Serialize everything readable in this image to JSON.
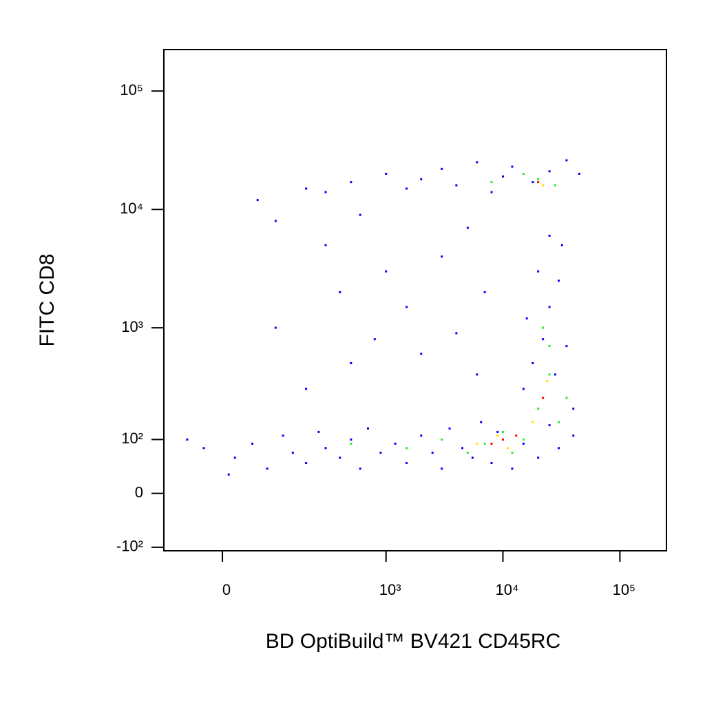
{
  "chart_data": {
    "type": "scatter",
    "x_label": "BD OptiBuild™ BV421 CD45RC",
    "y_label": "FITC CD8",
    "xscale": "biexponential",
    "yscale": "biexponential",
    "xlim": [
      -114,
      250000
    ],
    "ylim": [
      -109,
      224000
    ],
    "xticks": [
      0,
      {
        "value": 1000,
        "label": "10³"
      },
      {
        "value": 10000,
        "label": "10⁴"
      },
      {
        "value": 100000,
        "label": "10⁵"
      }
    ],
    "yticks": [
      {
        "value": -100,
        "label": "-10²"
      },
      0,
      {
        "value": 100,
        "label": "10²"
      },
      {
        "value": 1000,
        "label": "10³"
      },
      {
        "value": 10000,
        "label": "10⁴"
      },
      {
        "value": 100000,
        "label": "10⁵"
      }
    ],
    "series": [
      {
        "color": "#0000ff",
        "x": [
          20,
          50,
          80,
          120,
          150,
          200,
          260,
          300,
          400,
          500,
          600,
          700,
          900,
          1200,
          1500,
          2000,
          2500,
          3000,
          3500,
          4500,
          5500,
          6500,
          8000,
          9000,
          12000,
          15000,
          20000,
          25000,
          30000,
          40000,
          -30,
          -60,
          10,
          15000,
          18000,
          22000,
          25000,
          30000,
          20000,
          28000,
          35000,
          40000,
          16000,
          32000,
          25000,
          1000,
          1500,
          2000,
          3000,
          4000,
          6000,
          8000,
          10000,
          12000,
          18000,
          25000,
          35000,
          45000,
          500,
          300,
          200,
          100,
          300,
          400,
          600,
          800,
          1000,
          1500,
          2000,
          3000,
          4000,
          5000,
          6000,
          7000,
          200,
          500,
          100,
          60
        ],
        "y": [
          60,
          90,
          40,
          110,
          70,
          50,
          120,
          80,
          60,
          100,
          40,
          130,
          70,
          90,
          50,
          110,
          70,
          40,
          130,
          80,
          60,
          150,
          50,
          120,
          40,
          90,
          60,
          140,
          80,
          110,
          80,
          100,
          30,
          300,
          500,
          800,
          1500,
          2500,
          3000,
          400,
          700,
          200,
          1200,
          5000,
          6000,
          20000,
          15000,
          18000,
          22000,
          16000,
          25000,
          14000,
          19000,
          23000,
          17000,
          21000,
          26000,
          20000,
          17000,
          14000,
          15000,
          8000,
          5000,
          2000,
          9000,
          800,
          3000,
          1500,
          600,
          4000,
          900,
          7000,
          400,
          2000,
          300,
          500,
          1000,
          12000
        ]
      },
      {
        "color": "#22ee22",
        "x": [
          7000,
          10000,
          12000,
          15000,
          20000,
          25000,
          22000,
          30000,
          5000,
          3000,
          20000,
          15000,
          28000,
          8000,
          500,
          1500,
          25000,
          35000
        ],
        "y": [
          90,
          120,
          70,
          100,
          200,
          400,
          1000,
          150,
          70,
          100,
          18000,
          20000,
          16000,
          17000,
          90,
          80,
          700,
          250
        ]
      },
      {
        "color": "#ffdd00",
        "x": [
          9000,
          11000,
          18000,
          22000,
          6000,
          24000
        ],
        "y": [
          110,
          80,
          150,
          16000,
          90,
          350
        ]
      },
      {
        "color": "#ff0000",
        "x": [
          10000,
          13000,
          20000,
          8000,
          22000
        ],
        "y": [
          100,
          110,
          17000,
          90,
          250
        ]
      }
    ]
  }
}
